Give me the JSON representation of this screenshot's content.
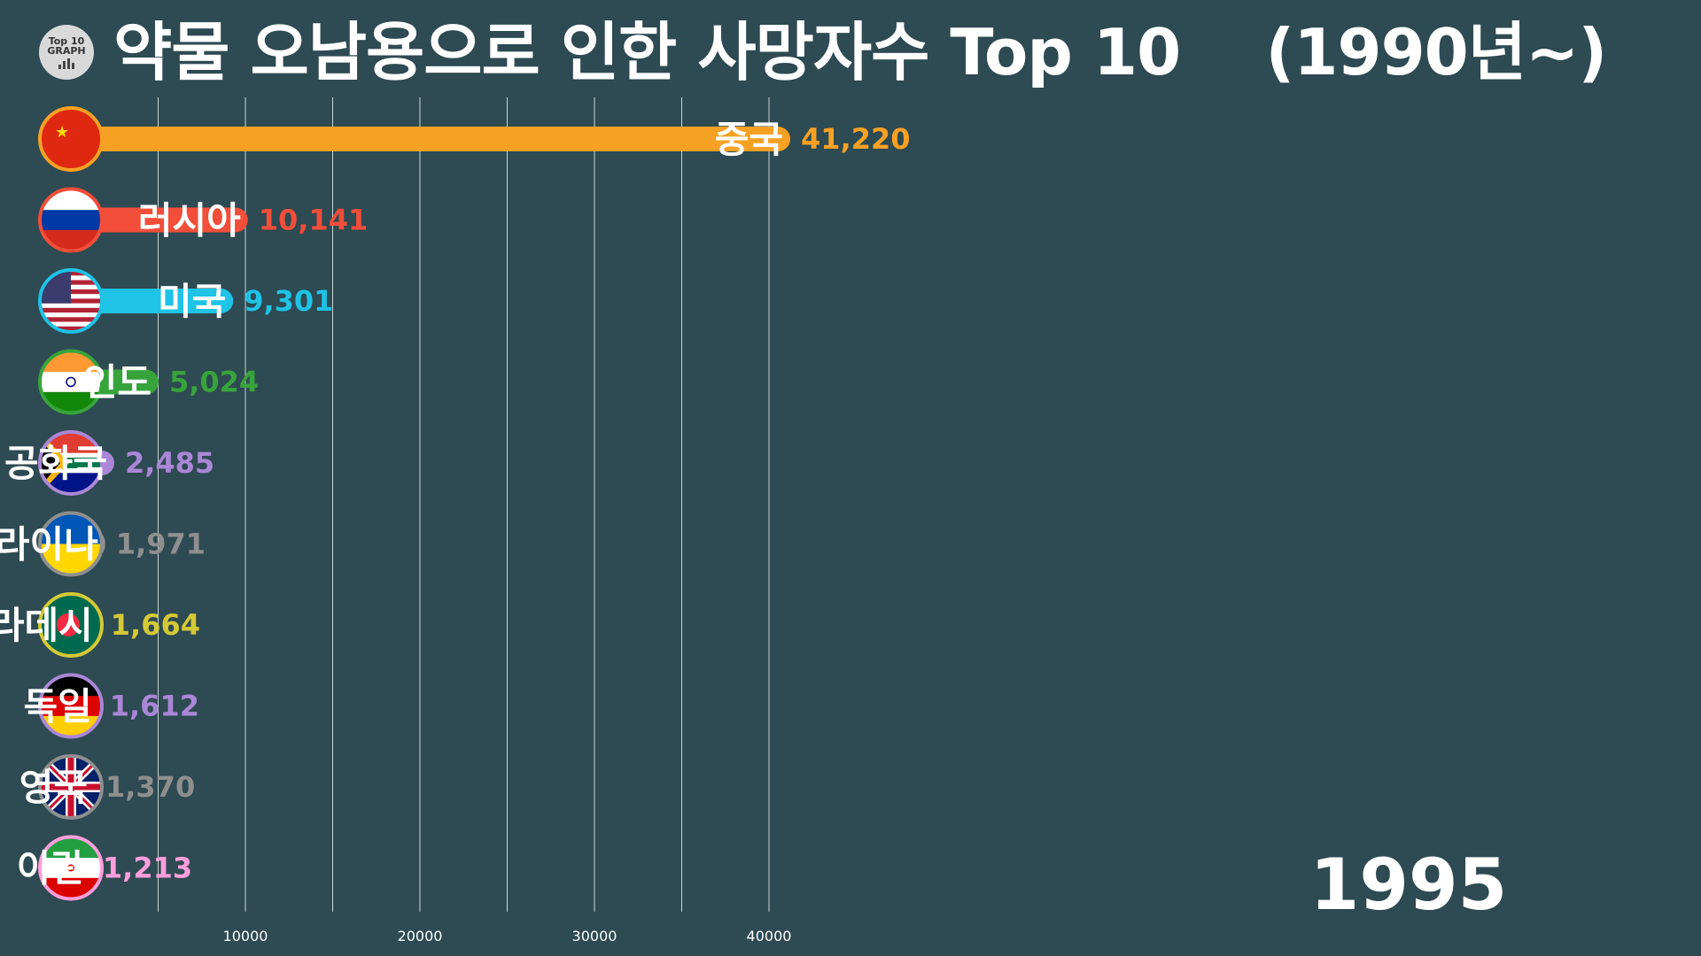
{
  "title": "약물 오남용으로 인한 사망자수 Top 10    (1990년~)",
  "logo": {
    "line1": "Top 10",
    "line2": "GRAPH"
  },
  "year": "1995",
  "colors": {
    "background": "#2e4a52",
    "grid": "#c8d4d6",
    "text": "#ffffff"
  },
  "chart_data": {
    "type": "bar",
    "orientation": "horizontal",
    "categories": [
      "중국",
      "러시아",
      "미국",
      "인도",
      "남아프리카 공화국",
      "우크라이나",
      "방글라데시",
      "독일",
      "영국",
      "이란"
    ],
    "values": [
      41220,
      10141,
      9301,
      5024,
      2485,
      1971,
      1664,
      1612,
      1370,
      1213
    ],
    "value_labels": [
      "41,220",
      "10,141",
      "9,301",
      "5,024",
      "2,485",
      "1,971",
      "1,664",
      "1,612",
      "1,370",
      "1,213"
    ],
    "bar_colors": [
      "#f7a124",
      "#f24e3a",
      "#1ec3e6",
      "#37a43b",
      "#aa87d6",
      "#8f8f8f",
      "#d4c936",
      "#aa87d6",
      "#8f8f8f",
      "#ff9edb"
    ],
    "label_colors": [
      "#f7a124",
      "#f24e3a",
      "#1ec3e6",
      "#37a43b",
      "#aa87d6",
      "#8f8f8f",
      "#d4c936",
      "#aa87d6",
      "#8f8f8f",
      "#ff9edb"
    ],
    "flags": [
      "china-flag-icon",
      "russia-flag-icon",
      "usa-flag-icon",
      "india-flag-icon",
      "south-africa-flag-icon",
      "ukraine-flag-icon",
      "bangladesh-flag-icon",
      "germany-flag-icon",
      "uk-flag-icon",
      "iran-flag-icon"
    ],
    "x_ticks": [
      10000,
      20000,
      30000,
      40000
    ],
    "x_tick_labels": [
      "10000",
      "20000",
      "30000",
      "40000"
    ],
    "grid": true
  }
}
